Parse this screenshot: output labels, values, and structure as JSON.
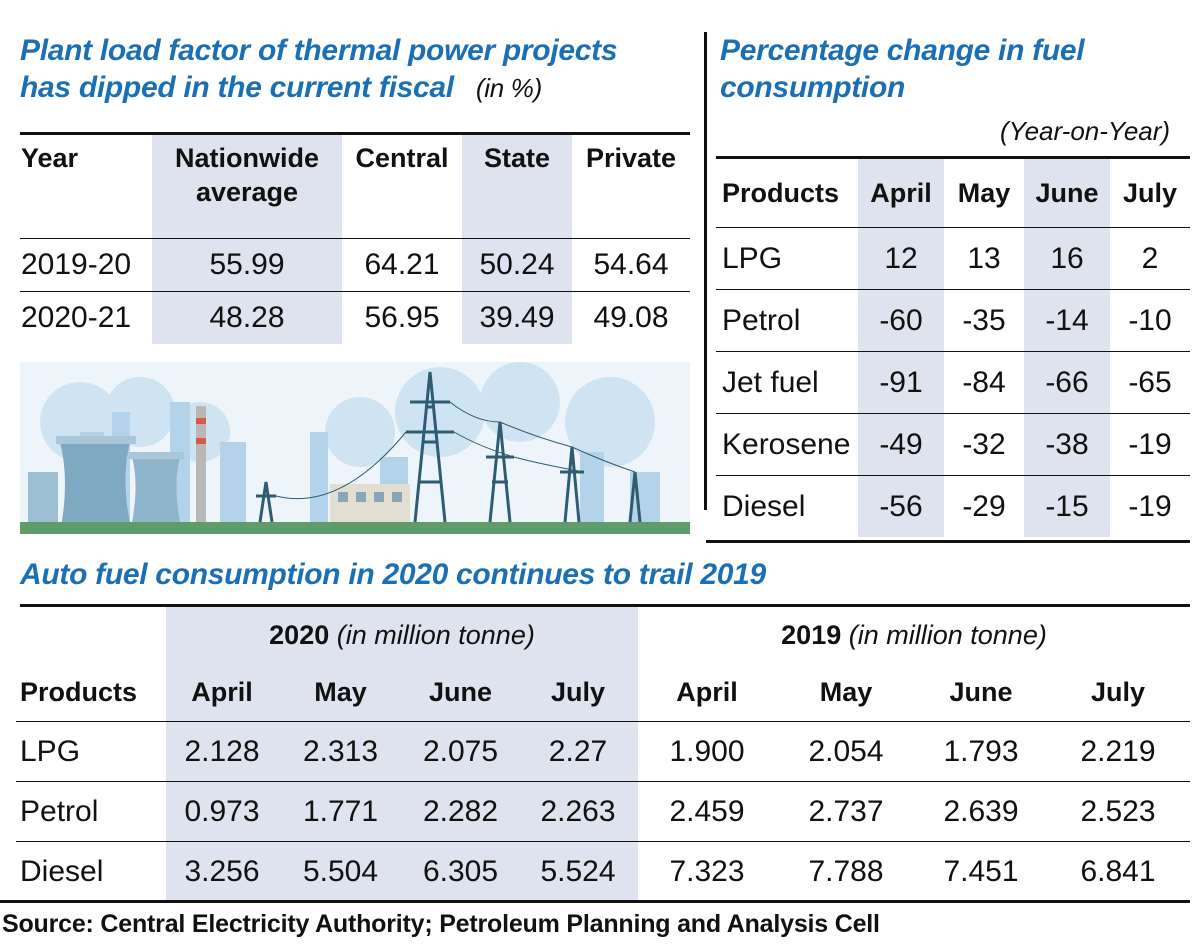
{
  "panel1": {
    "title_line1": "Plant load factor of thermal power projects",
    "title_line2": "has dipped in the current fiscal",
    "unit": "(in %)",
    "headers": [
      "Year",
      "Nationwide average",
      "Central",
      "State",
      "Private"
    ],
    "rows": [
      [
        "2019-20",
        "55.99",
        "64.21",
        "50.24",
        "54.64"
      ],
      [
        "2020-21",
        "48.28",
        "56.95",
        "39.49",
        "49.08"
      ]
    ]
  },
  "panel2": {
    "title_line1": "Percentage change in fuel",
    "title_line2": "consumption",
    "subtitle": "(Year-on-Year)",
    "headers": [
      "Products",
      "April",
      "May",
      "June",
      "July"
    ],
    "rows": [
      [
        "LPG",
        "12",
        "13",
        "16",
        "2"
      ],
      [
        "Petrol",
        "-60",
        "-35",
        "-14",
        "-10"
      ],
      [
        "Jet fuel",
        "-91",
        "-84",
        "-66",
        "-65"
      ],
      [
        "Kerosene",
        "-49",
        "-32",
        "-38",
        "-19"
      ],
      [
        "Diesel",
        "-56",
        "-29",
        "-15",
        "-19"
      ]
    ]
  },
  "panel3": {
    "title": "Auto fuel consumption in 2020 continues to trail 2019",
    "group_2020": "2020",
    "group_2019": "2019",
    "group_unit": "(in million tonne)",
    "headers": [
      "Products",
      "April",
      "May",
      "June",
      "July",
      "April",
      "May",
      "June",
      "July"
    ],
    "rows": [
      [
        "LPG",
        "2.128",
        "2.313",
        "2.075",
        "2.27",
        "1.900",
        "2.054",
        "1.793",
        "2.219"
      ],
      [
        "Petrol",
        "0.973",
        "1.771",
        "2.282",
        "2.263",
        "2.459",
        "2.737",
        "2.639",
        "2.523"
      ],
      [
        "Diesel",
        "3.256",
        "5.504",
        "6.305",
        "5.524",
        "7.323",
        "7.788",
        "7.451",
        "6.841"
      ]
    ]
  },
  "source": "Source: Central Electricity Authority; Petroleum Planning and Analysis Cell",
  "colors": {
    "title_blue": "#1b6fb4",
    "column_shade": "#dfe3ef",
    "text": "#111111"
  },
  "chart_data": [
    {
      "type": "table",
      "title": "Plant load factor of thermal power projects has dipped in the current fiscal (in %)",
      "columns": [
        "Year",
        "Nationwide average",
        "Central",
        "State",
        "Private"
      ],
      "rows": [
        [
          "2019-20",
          55.99,
          64.21,
          50.24,
          54.64
        ],
        [
          "2020-21",
          48.28,
          56.95,
          39.49,
          49.08
        ]
      ]
    },
    {
      "type": "table",
      "title": "Percentage change in fuel consumption (Year-on-Year)",
      "columns": [
        "Products",
        "April",
        "May",
        "June",
        "July"
      ],
      "rows": [
        [
          "LPG",
          12,
          13,
          16,
          2
        ],
        [
          "Petrol",
          -60,
          -35,
          -14,
          -10
        ],
        [
          "Jet fuel",
          -91,
          -84,
          -66,
          -65
        ],
        [
          "Kerosene",
          -49,
          -32,
          -38,
          -19
        ],
        [
          "Diesel",
          -56,
          -29,
          -15,
          -19
        ]
      ]
    },
    {
      "type": "table",
      "title": "Auto fuel consumption in 2020 continues to trail 2019",
      "columns": [
        "Products",
        "2020 April",
        "2020 May",
        "2020 June",
        "2020 July",
        "2019 April",
        "2019 May",
        "2019 June",
        "2019 July"
      ],
      "rows": [
        [
          "LPG",
          2.128,
          2.313,
          2.075,
          2.27,
          1.9,
          2.054,
          1.793,
          2.219
        ],
        [
          "Petrol",
          0.973,
          1.771,
          2.282,
          2.263,
          2.459,
          2.737,
          2.639,
          2.523
        ],
        [
          "Diesel",
          3.256,
          5.504,
          6.305,
          5.524,
          7.323,
          7.788,
          7.451,
          6.841
        ]
      ]
    }
  ]
}
